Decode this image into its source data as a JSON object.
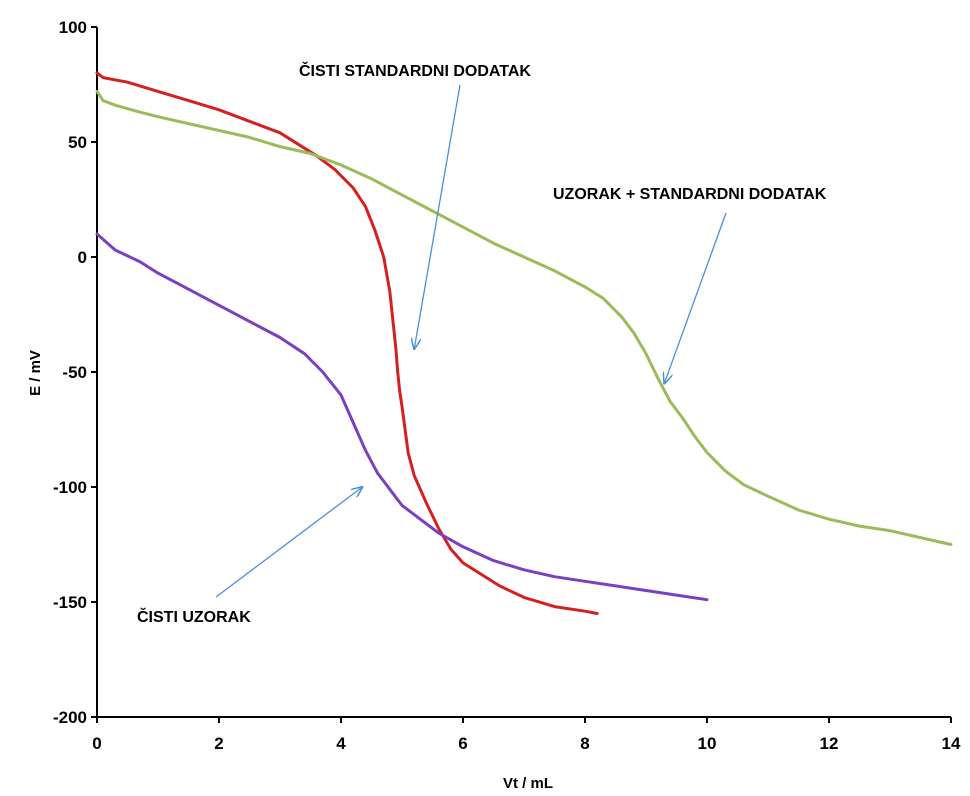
{
  "chart_data": {
    "type": "line",
    "title": "",
    "xlabel": "Vt / mL",
    "ylabel": "E / mV",
    "xlim": [
      0,
      14
    ],
    "ylim": [
      -200,
      100
    ],
    "xticks": [
      0,
      2,
      4,
      6,
      8,
      10,
      12,
      14
    ],
    "yticks": [
      100,
      50,
      0,
      -50,
      -100,
      -150,
      -200
    ],
    "grid": false,
    "legend": "none",
    "series": [
      {
        "color": "#d42020",
        "x": [
          0,
          0.1,
          0.5,
          1,
          1.5,
          2,
          2.5,
          3,
          3.3,
          3.6,
          3.9,
          4.2,
          4.4,
          4.55,
          4.7,
          4.8,
          4.86,
          4.9,
          4.93,
          4.96,
          5.0,
          5.05,
          5.1,
          5.2,
          5.4,
          5.6,
          5.8,
          6.0,
          6.3,
          6.6,
          7.0,
          7.5,
          8.0,
          8.2
        ],
        "y": [
          80,
          78,
          76,
          72,
          68,
          64,
          59,
          54,
          49,
          44,
          38,
          30,
          22,
          12,
          0,
          -15,
          -30,
          -40,
          -50,
          -58,
          -65,
          -75,
          -85,
          -95,
          -107,
          -118,
          -127,
          -133,
          -138,
          -143,
          -148,
          -152,
          -154,
          -155
        ]
      },
      {
        "color": "#9bbb59",
        "x": [
          0,
          0.1,
          0.3,
          0.7,
          1,
          1.5,
          2,
          2.5,
          3,
          3.5,
          4,
          4.5,
          5,
          5.5,
          6,
          6.5,
          7,
          7.5,
          8,
          8.3,
          8.6,
          8.8,
          9.0,
          9.2,
          9.4,
          9.6,
          9.8,
          10,
          10.3,
          10.6,
          11,
          11.5,
          12,
          12.5,
          13,
          13.5,
          14
        ],
        "y": [
          72,
          68,
          66,
          63,
          61,
          58,
          55,
          52,
          48,
          45,
          40,
          34,
          27,
          20,
          13,
          6,
          0,
          -6,
          -13,
          -18,
          -26,
          -33,
          -42,
          -53,
          -63,
          -70,
          -78,
          -85,
          -93,
          -99,
          -104,
          -110,
          -114,
          -117,
          -119,
          -122,
          -125
        ]
      },
      {
        "color": "#7b3fbf",
        "x": [
          0,
          0.3,
          0.7,
          1,
          1.5,
          2,
          2.5,
          3,
          3.4,
          3.7,
          4,
          4.2,
          4.4,
          4.6,
          4.8,
          5,
          5.3,
          5.6,
          6,
          6.5,
          7,
          7.5,
          8,
          8.5,
          9,
          9.5,
          10
        ],
        "y": [
          10,
          3,
          -2,
          -7,
          -14,
          -21,
          -28,
          -35,
          -42,
          -50,
          -60,
          -72,
          -84,
          -94,
          -101,
          -108,
          -114,
          -120,
          -126,
          -132,
          -136,
          -139,
          -141,
          -143,
          -145,
          -147,
          -149
        ]
      }
    ],
    "annotations": [
      {
        "text": "ČISTI STANDARDNI DODATAK",
        "x": 6.7,
        "y": 82,
        "arrow_to": [
          5.2,
          -40
        ]
      },
      {
        "text": "UZORAK + STANDARDNI DODATAK",
        "x": 12.2,
        "y": 27,
        "arrow_to": [
          9.3,
          -55
        ]
      },
      {
        "text": "ČISTI UZORAK",
        "x": 2.2,
        "y": -157,
        "arrow_to": [
          4.35,
          -100
        ]
      }
    ]
  }
}
